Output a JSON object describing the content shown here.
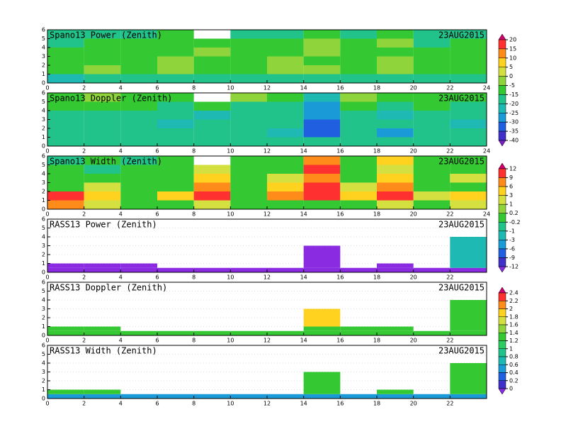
{
  "chart_data": [
    {
      "type": "heatmap",
      "title": "Spano13 Power (Zenith)",
      "date": "23AUG2015",
      "colorbar": 0,
      "xlim": [
        0,
        24
      ],
      "ylim": [
        0,
        6
      ],
      "xticks": [
        0,
        2,
        4,
        6,
        8,
        10,
        12,
        14,
        16,
        18,
        20,
        22,
        24
      ],
      "yticks": [
        0,
        1,
        2,
        3,
        4,
        5,
        6
      ],
      "xbins": [
        0,
        2,
        4,
        6,
        8,
        10,
        12,
        14,
        16,
        18,
        20,
        22,
        24
      ],
      "ybins": [
        0,
        1,
        2,
        3,
        4,
        5,
        6
      ],
      "z": [
        [
          -22,
          -20,
          -18,
          -20,
          -18,
          -16,
          -18,
          -20,
          -18,
          -16,
          -18,
          -20
        ],
        [
          -8,
          -3,
          -8,
          -3,
          -8,
          -10,
          -3,
          -3,
          -8,
          -3,
          -8,
          -10
        ],
        [
          -10,
          -8,
          -10,
          -3,
          -10,
          -8,
          -3,
          -10,
          -8,
          -3,
          -10,
          -12
        ],
        [
          -12,
          -10,
          -12,
          -8,
          -3,
          -10,
          -12,
          -3,
          -10,
          -8,
          -12,
          -12
        ],
        [
          -16,
          -12,
          -12,
          -10,
          -12,
          -12,
          -10,
          -3,
          -12,
          -3,
          -16,
          -12
        ],
        [
          -18,
          -16,
          -18,
          -12,
          null,
          -16,
          -18,
          -12,
          -16,
          -12,
          -18,
          -16
        ]
      ]
    },
    {
      "type": "heatmap",
      "title": "Spano13 Doppler (Zenith)",
      "date": "23AUG2015",
      "colorbar": 0,
      "xlim": [
        0,
        24
      ],
      "ylim": [
        0,
        6
      ],
      "xticks": [
        0,
        2,
        4,
        6,
        8,
        10,
        12,
        14,
        16,
        18,
        20,
        22,
        24
      ],
      "yticks": [
        0,
        1,
        2,
        3,
        4,
        5,
        6
      ],
      "xbins": [
        0,
        2,
        4,
        6,
        8,
        10,
        12,
        14,
        16,
        18,
        20,
        22,
        24
      ],
      "ybins": [
        0,
        1,
        2,
        3,
        4,
        5,
        6
      ],
      "z": [
        [
          -18,
          -18,
          -20,
          -18,
          -18,
          -20,
          -18,
          -20,
          -18,
          -20,
          -18,
          -20
        ],
        [
          -18,
          -20,
          -18,
          -18,
          -20,
          -18,
          -22,
          -32,
          -18,
          -28,
          -20,
          -18
        ],
        [
          -20,
          -18,
          -20,
          -22,
          -18,
          -20,
          -18,
          -32,
          -20,
          -20,
          -18,
          -22
        ],
        [
          -18,
          -20,
          -18,
          -20,
          -22,
          -18,
          -20,
          -30,
          -18,
          -22,
          -20,
          -18
        ],
        [
          -12,
          -10,
          -12,
          -18,
          -12,
          -16,
          -18,
          -28,
          -10,
          -18,
          -12,
          -16
        ],
        [
          -8,
          -3,
          -8,
          -10,
          null,
          -3,
          -8,
          -22,
          -3,
          -8,
          -10,
          -8
        ]
      ]
    },
    {
      "type": "heatmap",
      "title": "Spano13 Width (Zenith)",
      "date": "23AUG2015",
      "colorbar": 1,
      "xlim": [
        0,
        24
      ],
      "ylim": [
        0,
        6
      ],
      "xticks": [
        0,
        2,
        4,
        6,
        8,
        10,
        12,
        14,
        16,
        18,
        20,
        22,
        24
      ],
      "yticks": [
        0,
        1,
        2,
        3,
        4,
        5,
        6
      ],
      "xbins": [
        0,
        2,
        4,
        6,
        8,
        10,
        12,
        14,
        16,
        18,
        20,
        22,
        24
      ],
      "ybins": [
        0,
        1,
        2,
        3,
        4,
        5,
        6
      ],
      "z": [
        [
          7,
          2,
          0,
          0,
          2,
          0,
          0,
          0,
          0,
          2,
          0,
          2
        ],
        [
          10,
          5,
          0,
          5,
          10,
          0,
          7,
          10,
          5,
          10,
          2,
          5
        ],
        [
          0,
          2,
          0,
          0,
          7,
          0,
          5,
          10,
          2,
          7,
          0,
          0
        ],
        [
          0,
          0,
          0,
          0,
          5,
          0,
          2,
          7,
          0,
          5,
          0,
          2
        ],
        [
          0,
          -0.5,
          0,
          0,
          2,
          0,
          0,
          10,
          0,
          2,
          0,
          0
        ],
        [
          -0.5,
          0,
          -0.5,
          0,
          null,
          0,
          0,
          7,
          0,
          5,
          0,
          0
        ]
      ]
    },
    {
      "type": "heatmap",
      "title": "RASS13 Power (Zenith)",
      "date": "23AUG2015",
      "colorbar": 1,
      "grid": true,
      "xlim": [
        0,
        24
      ],
      "ylim": [
        0,
        6
      ],
      "xticks": [
        0,
        2,
        4,
        6,
        8,
        10,
        12,
        14,
        16,
        18,
        20,
        22
      ],
      "yticks": [
        0,
        1,
        2,
        3,
        4,
        5,
        6
      ],
      "xbins": [
        0,
        2,
        4,
        6,
        8,
        10,
        12,
        14,
        16,
        18,
        20,
        22,
        24
      ],
      "ybins": [
        0,
        0.5,
        1,
        2,
        3,
        4,
        5
      ],
      "z": [
        [
          -15,
          -15,
          -15,
          -15,
          -15,
          -15,
          -15,
          -15,
          -15,
          -15,
          -15,
          -15
        ],
        [
          -15,
          -15,
          -15,
          null,
          null,
          null,
          null,
          -15,
          null,
          -15,
          null,
          -3
        ],
        [
          null,
          null,
          null,
          null,
          null,
          null,
          null,
          -15,
          null,
          null,
          null,
          -3
        ],
        [
          null,
          null,
          null,
          null,
          null,
          null,
          null,
          -15,
          null,
          null,
          null,
          -3
        ],
        [
          null,
          null,
          null,
          null,
          null,
          null,
          null,
          null,
          null,
          null,
          null,
          -3
        ],
        [
          null,
          null,
          null,
          null,
          null,
          null,
          null,
          null,
          null,
          null,
          null,
          null
        ]
      ]
    },
    {
      "type": "heatmap",
      "title": "RASS13 Doppler (Zenith)",
      "date": "23AUG2015",
      "colorbar": 2,
      "grid": true,
      "xlim": [
        0,
        24
      ],
      "ylim": [
        0,
        6
      ],
      "xticks": [
        0,
        2,
        4,
        6,
        8,
        10,
        12,
        14,
        16,
        18,
        20,
        22
      ],
      "yticks": [
        0,
        1,
        2,
        3,
        4,
        5,
        6
      ],
      "xbins": [
        0,
        2,
        4,
        6,
        8,
        10,
        12,
        14,
        16,
        18,
        20,
        22,
        24
      ],
      "ybins": [
        0,
        0.5,
        1,
        2,
        3,
        4,
        5
      ],
      "z": [
        [
          1.2,
          1.2,
          1.2,
          1.2,
          1.2,
          1.2,
          1.2,
          1.2,
          1.2,
          1.2,
          1.2,
          1.2
        ],
        [
          1.2,
          1.2,
          null,
          null,
          null,
          null,
          null,
          1.2,
          1.2,
          1.2,
          null,
          1.2
        ],
        [
          null,
          null,
          null,
          null,
          null,
          null,
          null,
          1.8,
          null,
          null,
          null,
          1.2
        ],
        [
          null,
          null,
          null,
          null,
          null,
          null,
          null,
          1.8,
          null,
          null,
          null,
          1.2
        ],
        [
          null,
          null,
          null,
          null,
          null,
          null,
          null,
          null,
          null,
          null,
          null,
          1.2
        ],
        [
          null,
          null,
          null,
          null,
          null,
          null,
          null,
          null,
          null,
          null,
          null,
          null
        ]
      ]
    },
    {
      "type": "heatmap",
      "title": "RASS13 Width (Zenith)",
      "date": "23AUG2015",
      "colorbar": 2,
      "grid": true,
      "xlim": [
        0,
        24
      ],
      "ylim": [
        0,
        6
      ],
      "xticks": [
        0,
        2,
        4,
        6,
        8,
        10,
        12,
        14,
        16,
        18,
        20,
        22
      ],
      "yticks": [
        0,
        1,
        2,
        3,
        4,
        5,
        6
      ],
      "xbins": [
        0,
        2,
        4,
        6,
        8,
        10,
        12,
        14,
        16,
        18,
        20,
        22,
        24
      ],
      "ybins": [
        0,
        0.5,
        1,
        2,
        3,
        4,
        5
      ],
      "z": [
        [
          0.5,
          0.5,
          0.5,
          0.5,
          0.5,
          0.5,
          0.5,
          0.5,
          0.5,
          0.5,
          0.5,
          0.5
        ],
        [
          1.2,
          1.2,
          null,
          null,
          null,
          null,
          null,
          1.2,
          null,
          1.2,
          null,
          1.2
        ],
        [
          null,
          null,
          null,
          null,
          null,
          null,
          null,
          1.2,
          null,
          null,
          null,
          1.2
        ],
        [
          null,
          null,
          null,
          null,
          null,
          null,
          null,
          1.2,
          null,
          null,
          null,
          1.2
        ],
        [
          null,
          null,
          null,
          null,
          null,
          null,
          null,
          null,
          null,
          null,
          null,
          1.2
        ],
        [
          null,
          null,
          null,
          null,
          null,
          null,
          null,
          null,
          null,
          null,
          null,
          null
        ]
      ]
    }
  ],
  "colorbars": [
    {
      "ticks": [
        20,
        15,
        10,
        5,
        0,
        -5,
        -15,
        -20,
        -25,
        -30,
        -35,
        -40
      ],
      "colors": [
        "#d0006f",
        "#ff3030",
        "#ff8c1a",
        "#ffd21f",
        "#d4e040",
        "#8fd43a",
        "#34c832",
        "#22c38a",
        "#1fb9b4",
        "#1a9bd8",
        "#2060e0",
        "#4030c8",
        "#7a1fc0"
      ]
    },
    {
      "ticks": [
        12,
        9,
        6,
        3,
        1,
        0.2,
        -0.2,
        -1,
        -3,
        -6,
        -9,
        -12
      ],
      "colors": [
        "#d0006f",
        "#ff3030",
        "#ff8c1a",
        "#ffd21f",
        "#d4e040",
        "#8fd43a",
        "#34c832",
        "#22c38a",
        "#1fb9b4",
        "#1a9bd8",
        "#2060e0",
        "#4030c8",
        "#8a2be2"
      ]
    },
    {
      "ticks": [
        2.4,
        2.2,
        2,
        1.8,
        1.6,
        1.4,
        1.2,
        1,
        0.8,
        0.6,
        0.4,
        0.2,
        0
      ],
      "colors": [
        "#d0006f",
        "#ff3030",
        "#ff8c1a",
        "#ffd21f",
        "#d4e040",
        "#8fd43a",
        "#34c832",
        "#2ecc60",
        "#22c38a",
        "#1fb9b4",
        "#1a9bd8",
        "#2060e0",
        "#4030c8",
        "#8a2be2"
      ]
    }
  ]
}
